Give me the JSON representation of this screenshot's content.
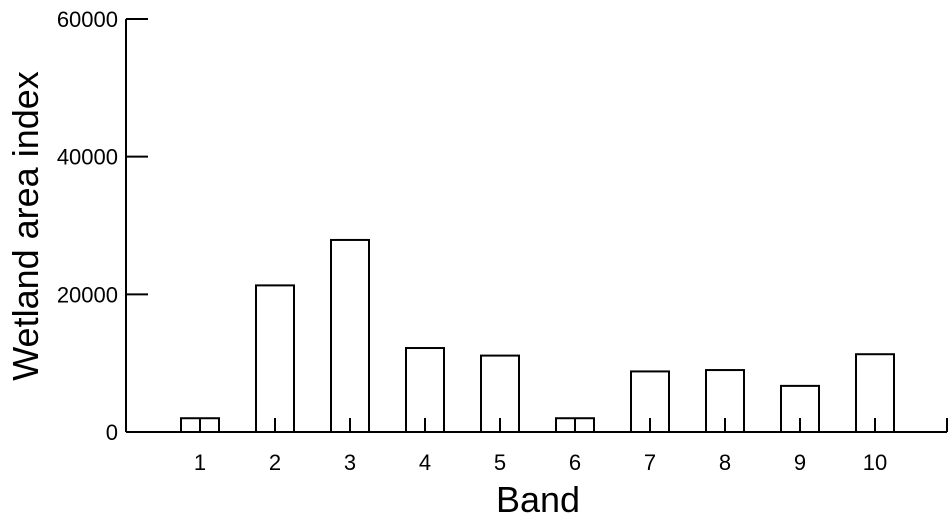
{
  "chart_data": {
    "type": "bar",
    "xlabel": "Band",
    "ylabel": "Wetland area index",
    "categories": [
      "1",
      "2",
      "3",
      "4",
      "5",
      "6",
      "7",
      "8",
      "9",
      "10"
    ],
    "values": [
      2000,
      21300,
      27900,
      12200,
      11100,
      2000,
      8800,
      9000,
      6700,
      11300
    ],
    "ylim": [
      0,
      60000
    ],
    "yticks": [
      "0",
      "20000",
      "40000",
      "60000"
    ],
    "ytick_values": [
      0,
      20000,
      40000,
      60000
    ],
    "grid": false,
    "legend": "none",
    "colors": {
      "bar_fill": "#ffffff",
      "bar_stroke": "#000000",
      "axis": "#000000"
    }
  }
}
